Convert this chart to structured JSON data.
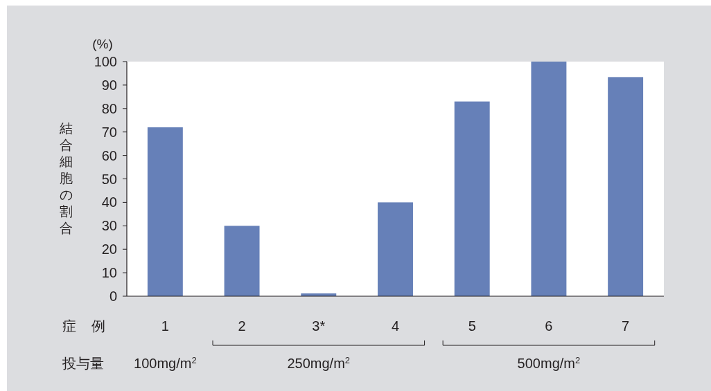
{
  "chart_data": {
    "type": "bar",
    "categories": [
      "1",
      "2",
      "3*",
      "4",
      "5",
      "6",
      "7"
    ],
    "values": [
      72,
      30,
      1.2,
      40,
      83,
      100,
      93.4
    ],
    "color": "#6680b8",
    "ylabel": "結合細胞の割合",
    "xlabel": "症 例",
    "ylim": [
      0,
      100
    ],
    "yticks": [
      0,
      10,
      20,
      30,
      40,
      50,
      60,
      70,
      80,
      90,
      100
    ],
    "grid": false,
    "annotations": [
      "(%)",
      "投与量",
      "100mg/m$^{2}$",
      "250mg/m$^{2}$",
      "500mg/m$^{2}$"
    ]
  }
}
